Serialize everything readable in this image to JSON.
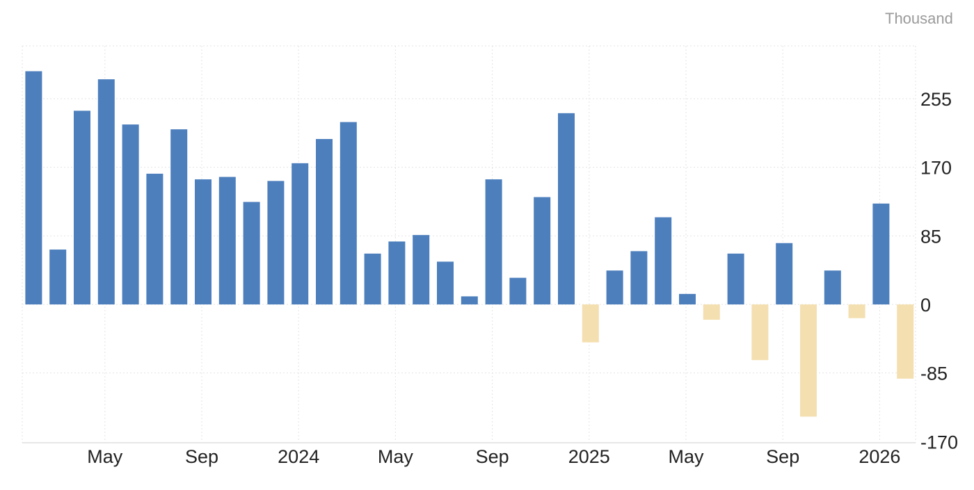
{
  "chart_data": {
    "type": "bar",
    "unit_label": "Thousand",
    "x": [
      "2023-02",
      "2023-03",
      "2023-04",
      "2023-05",
      "2023-06",
      "2023-07",
      "2023-08",
      "2023-09",
      "2023-10",
      "2023-11",
      "2023-12",
      "2024-01",
      "2024-02",
      "2024-03",
      "2024-04",
      "2024-05",
      "2024-06",
      "2024-07",
      "2024-08",
      "2024-09",
      "2024-10",
      "2024-11",
      "2024-12",
      "2025-01",
      "2025-02",
      "2025-03",
      "2025-04",
      "2025-05",
      "2025-06",
      "2025-07",
      "2025-08",
      "2025-09",
      "2025-10",
      "2025-11",
      "2025-12",
      "2026-01",
      "2026-02"
    ],
    "values": [
      289,
      68,
      240,
      279,
      223,
      162,
      217,
      155,
      158,
      127,
      153,
      175,
      205,
      226,
      63,
      78,
      86,
      53,
      10,
      155,
      33,
      133,
      237,
      -47,
      42,
      66,
      108,
      13,
      -19,
      63,
      -69,
      76,
      -139,
      42,
      -17,
      125,
      -92
    ],
    "positive_color": "#4d7fbd",
    "negative_color": "#f4dfb0",
    "xtick_labels": [
      {
        "label": "May",
        "at": "2023-05"
      },
      {
        "label": "Sep",
        "at": "2023-09"
      },
      {
        "label": "2024",
        "at": "2024-01"
      },
      {
        "label": "May",
        "at": "2024-05"
      },
      {
        "label": "Sep",
        "at": "2024-09"
      },
      {
        "label": "2025",
        "at": "2025-01"
      },
      {
        "label": "May",
        "at": "2025-05"
      },
      {
        "label": "Sep",
        "at": "2025-09"
      },
      {
        "label": "2026",
        "at": "2026-01"
      }
    ],
    "yticks": [
      255,
      170,
      85,
      0,
      -85,
      -170
    ],
    "ytick_labels": [
      "255",
      "170",
      "85",
      "0",
      "-85",
      "-170"
    ],
    "ylim": [
      -170,
      320
    ],
    "y_axis_side": "right",
    "grid": true,
    "legend": "none"
  }
}
